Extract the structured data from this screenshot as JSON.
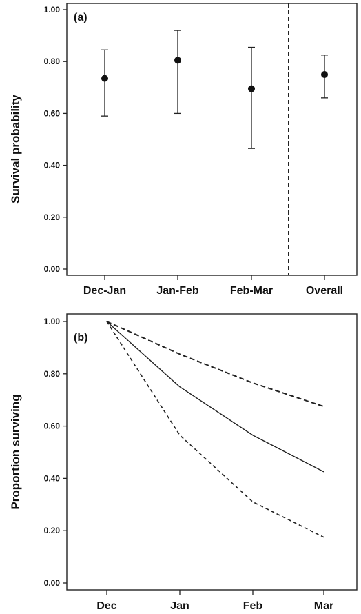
{
  "chart_data": [
    {
      "type": "scatter",
      "panel_label": "(a)",
      "ylabel": "Survival probability",
      "xlabel": "",
      "categories": [
        "Dec-Jan",
        "Jan-Feb",
        "Feb-Mar",
        "Overall"
      ],
      "points": [
        {
          "category": "Dec-Jan",
          "y": 0.735,
          "lower": 0.59,
          "upper": 0.845
        },
        {
          "category": "Jan-Feb",
          "y": 0.805,
          "lower": 0.6,
          "upper": 0.92
        },
        {
          "category": "Feb-Mar",
          "y": 0.695,
          "lower": 0.465,
          "upper": 0.855
        },
        {
          "category": "Overall",
          "y": 0.75,
          "lower": 0.66,
          "upper": 0.825
        }
      ],
      "separator_between": [
        "Feb-Mar",
        "Overall"
      ],
      "ylim": [
        0,
        1
      ],
      "yticks": [
        "0.00",
        "0.20",
        "0.40",
        "0.60",
        "0.80",
        "1.00"
      ],
      "grid": false
    },
    {
      "type": "line",
      "panel_label": "(b)",
      "ylabel": "Proportion surviving",
      "xlabel": "",
      "categories": [
        "Dec",
        "Jan",
        "Feb",
        "Mar"
      ],
      "series": [
        {
          "style": "solid",
          "values": [
            1.0,
            0.75,
            0.565,
            0.425
          ]
        },
        {
          "style": "dashed-upper",
          "values": [
            1.0,
            0.875,
            0.765,
            0.675
          ]
        },
        {
          "style": "dashed-lower",
          "values": [
            1.0,
            0.565,
            0.31,
            0.175
          ]
        }
      ],
      "ylim": [
        0,
        1
      ],
      "yticks": [
        "0.00",
        "0.20",
        "0.40",
        "0.60",
        "0.80",
        "1.00"
      ],
      "grid": false
    }
  ]
}
